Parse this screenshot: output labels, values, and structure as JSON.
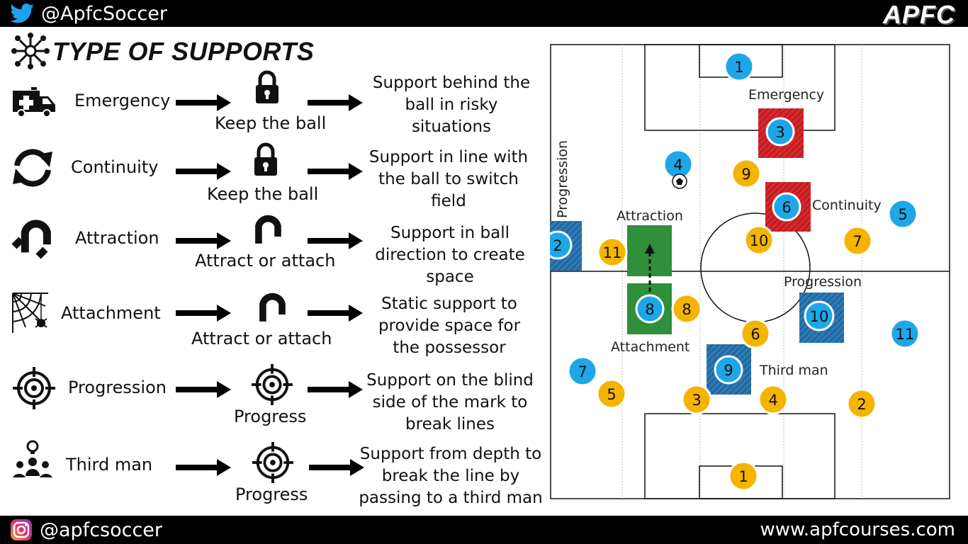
{
  "header": {
    "twitter_handle": "@ApfcSoccer",
    "brand": "APFC",
    "twitter_icon": "twitter-bird-icon"
  },
  "title": "TYPE OF SUPPORTS",
  "title_icon": "network-people-icon",
  "rows": [
    {
      "name": "Emergency",
      "icon": "ambulance-icon",
      "consequence": "Keep the ball",
      "consequence_icon": "lock-icon",
      "desc": [
        "Support behind the",
        "ball in risky",
        "situations"
      ]
    },
    {
      "name": "Continuity",
      "icon": "refresh-arrows-icon",
      "consequence": "Keep the ball",
      "consequence_icon": "lock-icon",
      "desc": [
        "Support in line with",
        "the ball to switch",
        "field"
      ]
    },
    {
      "name": "Attraction",
      "icon": "magnet-icon",
      "consequence": "Attract or attach",
      "consequence_icon": "magnet-icon",
      "desc": [
        "Support in ball",
        "direction to create",
        "space"
      ]
    },
    {
      "name": "Attachment",
      "icon": "spider-web-icon",
      "consequence": "Attract or attach",
      "consequence_icon": "magnet-icon",
      "desc": [
        "Static support to",
        "provide space for",
        "the possessor"
      ]
    },
    {
      "name": "Progression",
      "icon": "crosshair-icon",
      "consequence": "Progress",
      "consequence_icon": "crosshair-icon",
      "desc": [
        "Support on the blind",
        "side of the mark to",
        "break lines"
      ]
    },
    {
      "name": "Third man",
      "icon": "team-idea-icon",
      "consequence": "Progress",
      "consequence_icon": "crosshair-icon",
      "desc": [
        "Support from depth to",
        "break the line by",
        "passing to a third man"
      ]
    }
  ],
  "pitch": {
    "zone_labels": {
      "emergency": "Emergency",
      "progression_vertical": "Progression",
      "attraction": "Attraction",
      "continuity": "Continuity",
      "progression": "Progression",
      "attachment": "Attachment",
      "third_man": "Third man"
    },
    "blue_players": [
      "1",
      "3",
      "4",
      "6",
      "5",
      "2",
      "8",
      "10",
      "11",
      "9",
      "7"
    ],
    "yellow_players": [
      "9",
      "11",
      "10",
      "7",
      "8",
      "6",
      "5",
      "3",
      "4",
      "2",
      "1"
    ],
    "colors": {
      "blue": "#1ea7e8",
      "yellow": "#f5b400",
      "zone_red": "#d9262b",
      "zone_blue": "#2b79b5",
      "zone_green": "#2f8f3a"
    }
  },
  "footer": {
    "instagram_handle": "@apfcsoccer",
    "website": "www.apfcourses.com",
    "instagram_icon": "instagram-icon"
  }
}
